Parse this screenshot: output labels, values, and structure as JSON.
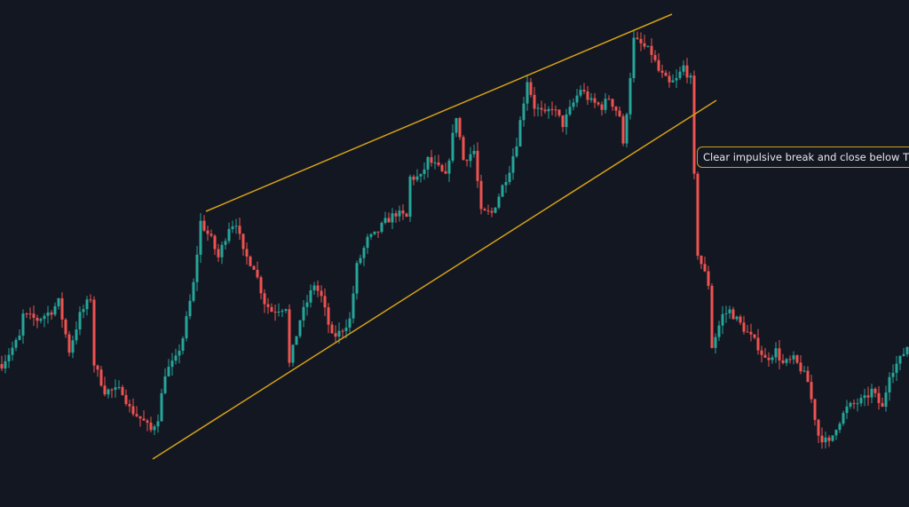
{
  "chart_data": {
    "type": "candlestick",
    "title": "",
    "xlabel": "",
    "ylabel": "",
    "grid": false,
    "background": "#131722",
    "colors": {
      "up": "#26a69a",
      "down": "#ef5350",
      "trendline": "#d4a017",
      "annotation_border": "#c9a227"
    },
    "bar_count": 256,
    "ylim": [
      0,
      571
    ],
    "close_path": [
      [
        0,
        161
      ],
      [
        5,
        191
      ],
      [
        6,
        216
      ],
      [
        10,
        211
      ],
      [
        14,
        221
      ],
      [
        16,
        231
      ],
      [
        19,
        176
      ],
      [
        22,
        216
      ],
      [
        25,
        236
      ],
      [
        26,
        161
      ],
      [
        29,
        131
      ],
      [
        34,
        131
      ],
      [
        36,
        111
      ],
      [
        40,
        96
      ],
      [
        42,
        86
      ],
      [
        44,
        101
      ],
      [
        46,
        151
      ],
      [
        49,
        166
      ],
      [
        51,
        191
      ],
      [
        54,
        251
      ],
      [
        56,
        321
      ],
      [
        59,
        301
      ],
      [
        61,
        281
      ],
      [
        64,
        316
      ],
      [
        66,
        321
      ],
      [
        68,
        286
      ],
      [
        71,
        271
      ],
      [
        74,
        231
      ],
      [
        76,
        221
      ],
      [
        80,
        226
      ],
      [
        81,
        161
      ],
      [
        84,
        211
      ],
      [
        88,
        251
      ],
      [
        90,
        236
      ],
      [
        93,
        191
      ],
      [
        95,
        196
      ],
      [
        98,
        211
      ],
      [
        100,
        271
      ],
      [
        103,
        301
      ],
      [
        105,
        306
      ],
      [
        108,
        321
      ],
      [
        111,
        331
      ],
      [
        114,
        326
      ],
      [
        115,
        371
      ],
      [
        118,
        371
      ],
      [
        120,
        391
      ],
      [
        123,
        381
      ],
      [
        125,
        371
      ],
      [
        128,
        441
      ],
      [
        130,
        391
      ],
      [
        133,
        401
      ],
      [
        135,
        331
      ],
      [
        138,
        331
      ],
      [
        140,
        351
      ],
      [
        143,
        381
      ],
      [
        145,
        411
      ],
      [
        148,
        481
      ],
      [
        150,
        451
      ],
      [
        153,
        441
      ],
      [
        155,
        451
      ],
      [
        158,
        431
      ],
      [
        163,
        471
      ],
      [
        166,
        456
      ],
      [
        169,
        451
      ],
      [
        171,
        461
      ],
      [
        174,
        441
      ],
      [
        175,
        406
      ],
      [
        178,
        526
      ],
      [
        180,
        521
      ],
      [
        183,
        511
      ],
      [
        185,
        491
      ],
      [
        188,
        476
      ],
      [
        190,
        481
      ],
      [
        192,
        496
      ],
      [
        194,
        481
      ],
      [
        195,
        371
      ],
      [
        196,
        286
      ],
      [
        199,
        251
      ],
      [
        200,
        181
      ],
      [
        203,
        216
      ],
      [
        205,
        221
      ],
      [
        208,
        206
      ],
      [
        210,
        196
      ],
      [
        213,
        181
      ],
      [
        215,
        166
      ],
      [
        218,
        176
      ],
      [
        220,
        161
      ],
      [
        223,
        166
      ],
      [
        225,
        156
      ],
      [
        227,
        141
      ],
      [
        230,
        81
      ],
      [
        233,
        71
      ],
      [
        235,
        91
      ],
      [
        238,
        111
      ],
      [
        240,
        116
      ],
      [
        243,
        121
      ],
      [
        245,
        131
      ],
      [
        248,
        111
      ],
      [
        250,
        151
      ],
      [
        253,
        166
      ],
      [
        255,
        181
      ]
    ],
    "trendlines": [
      {
        "name": "upper",
        "from": [
          57.5,
          333
        ],
        "to": [
          188.75,
          555
        ]
      },
      {
        "name": "lower",
        "from": [
          42.5,
          54
        ],
        "to": [
          201.25,
          458
        ]
      }
    ],
    "annotations": [
      {
        "text": "Clear impulsive break and close below TL"
      }
    ]
  }
}
